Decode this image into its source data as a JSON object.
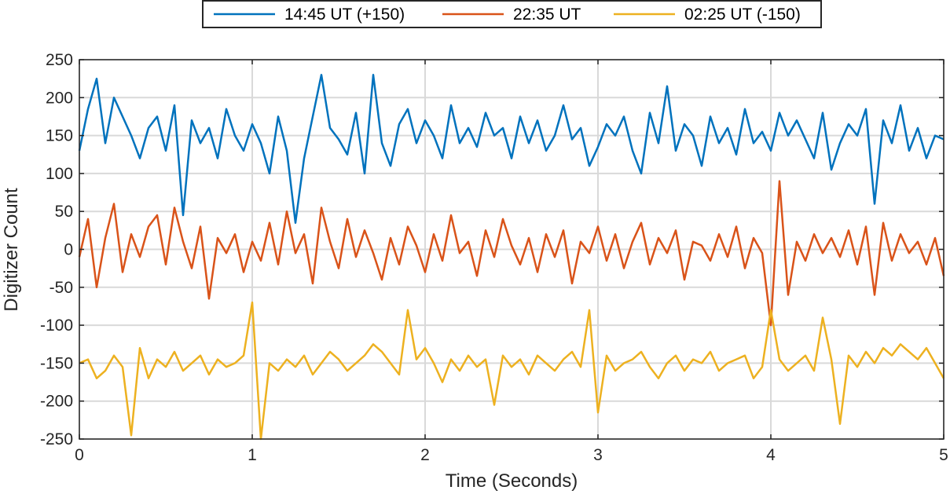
{
  "chart_data": {
    "type": "line",
    "xlabel": "Time (Seconds)",
    "ylabel": "Digitizer Count",
    "xlim": [
      0,
      5
    ],
    "ylim": [
      -250,
      250
    ],
    "xticks": [
      0,
      1,
      2,
      3,
      4,
      5
    ],
    "yticks": [
      -250,
      -200,
      -150,
      -100,
      -50,
      0,
      50,
      100,
      150,
      200,
      250
    ],
    "grid": true,
    "legend_placement": "top-center",
    "x": [
      0.0,
      0.05,
      0.1,
      0.15,
      0.2,
      0.25,
      0.3,
      0.35,
      0.4,
      0.45,
      0.5,
      0.55,
      0.6,
      0.65,
      0.7,
      0.75,
      0.8,
      0.85,
      0.9,
      0.95,
      1.0,
      1.05,
      1.1,
      1.15,
      1.2,
      1.25,
      1.3,
      1.35,
      1.4,
      1.45,
      1.5,
      1.55,
      1.6,
      1.65,
      1.7,
      1.75,
      1.8,
      1.85,
      1.9,
      1.95,
      2.0,
      2.05,
      2.1,
      2.15,
      2.2,
      2.25,
      2.3,
      2.35,
      2.4,
      2.45,
      2.5,
      2.55,
      2.6,
      2.65,
      2.7,
      2.75,
      2.8,
      2.85,
      2.9,
      2.95,
      3.0,
      3.05,
      3.1,
      3.15,
      3.2,
      3.25,
      3.3,
      3.35,
      3.4,
      3.45,
      3.5,
      3.55,
      3.6,
      3.65,
      3.7,
      3.75,
      3.8,
      3.85,
      3.9,
      3.95,
      4.0,
      4.05,
      4.1,
      4.15,
      4.2,
      4.25,
      4.3,
      4.35,
      4.4,
      4.45,
      4.5,
      4.55,
      4.6,
      4.65,
      4.7,
      4.75,
      4.8,
      4.85,
      4.9,
      4.95,
      5.0
    ],
    "series": [
      {
        "name": "14:45 UT (+150)",
        "color": "#0072BD",
        "values": [
          130,
          185,
          225,
          140,
          200,
          175,
          150,
          120,
          160,
          175,
          130,
          190,
          45,
          170,
          140,
          160,
          120,
          185,
          150,
          130,
          165,
          140,
          100,
          175,
          130,
          35,
          120,
          175,
          230,
          160,
          145,
          125,
          180,
          100,
          230,
          140,
          110,
          165,
          185,
          140,
          170,
          150,
          120,
          190,
          140,
          160,
          135,
          180,
          150,
          160,
          120,
          175,
          140,
          170,
          130,
          150,
          190,
          145,
          160,
          110,
          135,
          165,
          150,
          175,
          130,
          100,
          180,
          140,
          215,
          130,
          165,
          150,
          110,
          175,
          140,
          160,
          125,
          185,
          140,
          155,
          130,
          180,
          150,
          170,
          145,
          120,
          180,
          105,
          140,
          165,
          150,
          185,
          60,
          170,
          140,
          190,
          130,
          160,
          120,
          150,
          145
        ]
      },
      {
        "name": "22:35 UT",
        "color": "#D95319",
        "values": [
          -10,
          40,
          -50,
          15,
          60,
          -30,
          20,
          -10,
          30,
          45,
          -20,
          55,
          10,
          -25,
          30,
          -65,
          15,
          -5,
          20,
          -30,
          10,
          -15,
          35,
          -20,
          50,
          -5,
          20,
          -45,
          55,
          10,
          -25,
          40,
          -10,
          25,
          -5,
          -40,
          15,
          -20,
          30,
          5,
          -30,
          20,
          -15,
          45,
          -5,
          10,
          -35,
          25,
          -10,
          40,
          5,
          -20,
          15,
          -30,
          20,
          -10,
          25,
          -45,
          10,
          -5,
          30,
          -15,
          20,
          -25,
          10,
          35,
          -20,
          15,
          -5,
          25,
          -40,
          10,
          5,
          -15,
          20,
          -10,
          30,
          -25,
          15,
          -5,
          -100,
          90,
          -60,
          10,
          -15,
          20,
          -5,
          15,
          -10,
          25,
          -20,
          30,
          -60,
          35,
          -15,
          20,
          -5,
          10,
          -20,
          15,
          -35
        ]
      },
      {
        "name": "02:25 UT (-150)",
        "color": "#EDB120",
        "values": [
          -150,
          -145,
          -170,
          -160,
          -140,
          -155,
          -245,
          -130,
          -170,
          -145,
          -155,
          -135,
          -160,
          -150,
          -140,
          -165,
          -145,
          -155,
          -150,
          -140,
          -70,
          -250,
          -150,
          -160,
          -145,
          -155,
          -140,
          -165,
          -150,
          -135,
          -145,
          -160,
          -150,
          -140,
          -125,
          -135,
          -150,
          -165,
          -80,
          -145,
          -130,
          -150,
          -175,
          -145,
          -160,
          -140,
          -155,
          -145,
          -205,
          -140,
          -155,
          -145,
          -165,
          -140,
          -150,
          -160,
          -145,
          -135,
          -155,
          -80,
          -215,
          -140,
          -160,
          -150,
          -145,
          -135,
          -155,
          -170,
          -150,
          -140,
          -160,
          -145,
          -150,
          -135,
          -160,
          -150,
          -145,
          -140,
          -170,
          -155,
          -80,
          -145,
          -160,
          -150,
          -140,
          -160,
          -90,
          -145,
          -230,
          -140,
          -155,
          -135,
          -150,
          -130,
          -140,
          -125,
          -135,
          -145,
          -130,
          -150,
          -170
        ]
      }
    ]
  }
}
